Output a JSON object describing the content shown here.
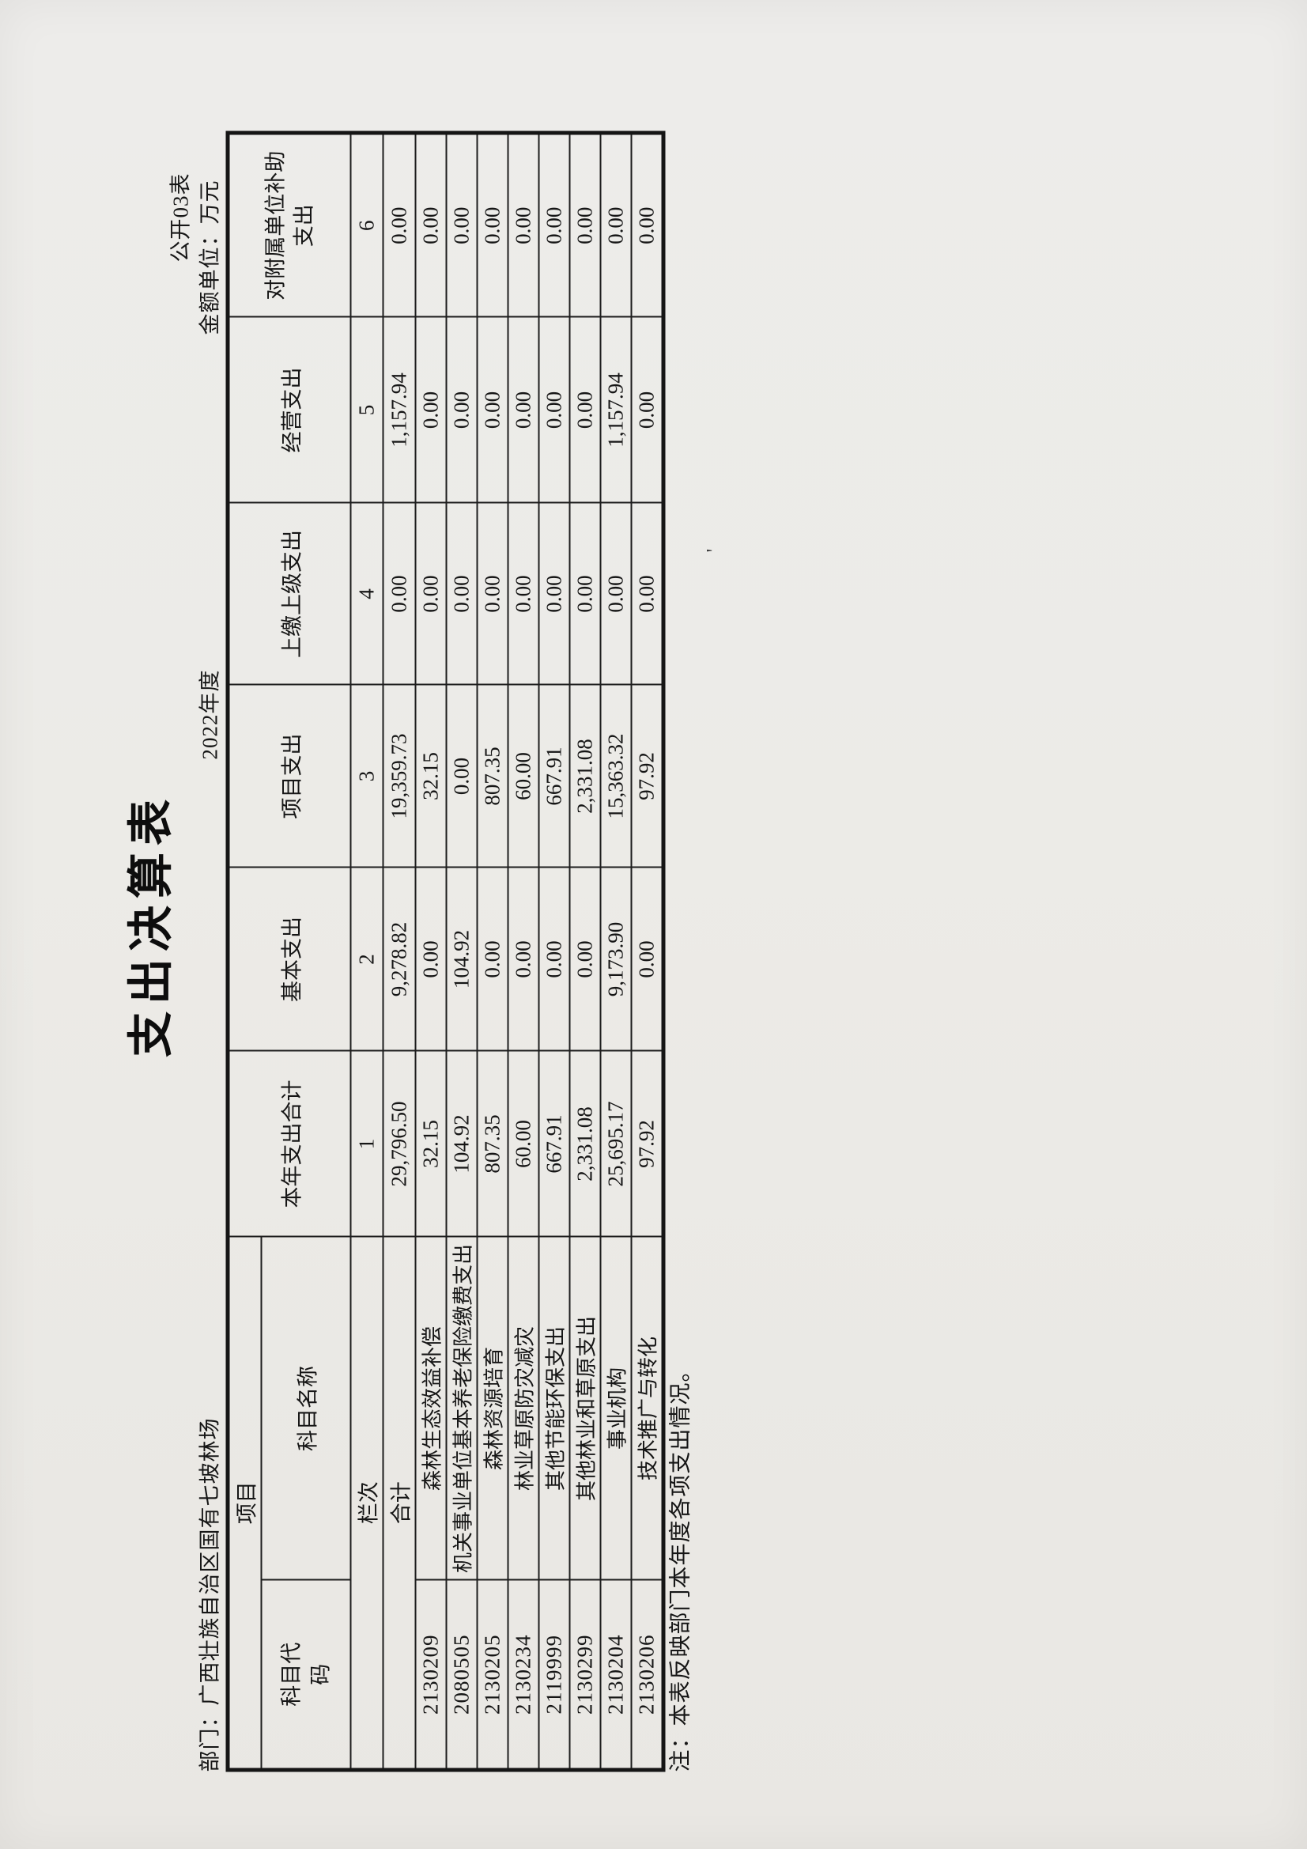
{
  "page": {
    "pub_label": "公开03表",
    "title": "支出决算表",
    "department": "部门：广西壮族自治区国有七坡林场",
    "year": "2022年度",
    "unit": "金额单位：万元",
    "note": "注：本表反映部门本年度各项支出情况。",
    "scan_artifact": "'"
  },
  "table": {
    "headers": {
      "project": "项目",
      "subject_code": "科目代码",
      "subject_name": "科目名称",
      "total_year": "本年支出合计",
      "basic": "基本支出",
      "project_exp": "项目支出",
      "upper": "上缴上级支出",
      "operating": "经营支出",
      "subsidy": "对附属单位补助支出",
      "lanci": "栏次",
      "col_nums": [
        "1",
        "2",
        "3",
        "4",
        "5",
        "6"
      ]
    },
    "total_row": {
      "label": "合计",
      "values": [
        "29,796.50",
        "9,278.82",
        "19,359.73",
        "0.00",
        "1,157.94",
        "0.00"
      ]
    },
    "rows": [
      {
        "code": "2130209",
        "name": "森林生态效益补偿",
        "values": [
          "32.15",
          "0.00",
          "32.15",
          "0.00",
          "0.00",
          "0.00"
        ]
      },
      {
        "code": "2080505",
        "name": "机关事业单位基本养老保险缴费支出",
        "values": [
          "104.92",
          "104.92",
          "0.00",
          "0.00",
          "0.00",
          "0.00"
        ]
      },
      {
        "code": "2130205",
        "name": "森林资源培育",
        "values": [
          "807.35",
          "0.00",
          "807.35",
          "0.00",
          "0.00",
          "0.00"
        ]
      },
      {
        "code": "2130234",
        "name": "林业草原防灾减灾",
        "values": [
          "60.00",
          "0.00",
          "60.00",
          "0.00",
          "0.00",
          "0.00"
        ]
      },
      {
        "code": "2119999",
        "name": "其他节能环保支出",
        "values": [
          "667.91",
          "0.00",
          "667.91",
          "0.00",
          "0.00",
          "0.00"
        ]
      },
      {
        "code": "2130299",
        "name": "其他林业和草原支出",
        "values": [
          "2,331.08",
          "0.00",
          "2,331.08",
          "0.00",
          "0.00",
          "0.00"
        ]
      },
      {
        "code": "2130204",
        "name": "事业机构",
        "values": [
          "25,695.17",
          "9,173.90",
          "15,363.32",
          "0.00",
          "1,157.94",
          "0.00"
        ]
      },
      {
        "code": "2130206",
        "name": "技术推广与转化",
        "values": [
          "97.92",
          "0.00",
          "97.92",
          "0.00",
          "0.00",
          "0.00"
        ]
      }
    ]
  }
}
